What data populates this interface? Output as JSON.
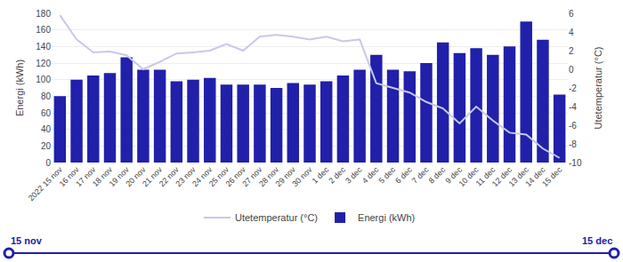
{
  "chart_data": {
    "type": "bar",
    "categories": [
      "2022 15 nov",
      "16 nov",
      "17 nov",
      "18 nov",
      "19 nov",
      "20 nov",
      "21 nov",
      "22 nov",
      "23 nov",
      "24 nov",
      "25 nov",
      "26 nov",
      "27 nov",
      "28 nov",
      "29 nov",
      "30 nov",
      "1 dec",
      "2 dec",
      "3 dec",
      "4 dec",
      "5 dec",
      "6 dec",
      "7 dec",
      "8 dec",
      "9 dec",
      "10 dec",
      "11 dec",
      "12 dec",
      "13 dec",
      "14 dec",
      "15 dec"
    ],
    "series": [
      {
        "name": "Energi (kWh)",
        "type": "bar",
        "color": "#2020aa",
        "values": [
          80,
          100,
          105,
          108,
          127,
          112,
          112,
          98,
          100,
          102,
          94,
          94,
          94,
          90,
          96,
          94,
          98,
          105,
          112,
          130,
          112,
          110,
          120,
          145,
          132,
          138,
          130,
          140,
          170,
          148,
          82
        ]
      },
      {
        "name": "Utetemperatur (°C)",
        "type": "line",
        "color": "#c8c8e8",
        "axis": "y2",
        "values": [
          5.8,
          3.2,
          1.8,
          1.9,
          1.5,
          0.0,
          0.8,
          1.7,
          1.8,
          2.0,
          2.7,
          2.0,
          3.5,
          3.7,
          3.5,
          3.2,
          3.5,
          3.0,
          3.2,
          -1.5,
          -2.0,
          -2.5,
          -3.5,
          -4.2,
          -5.8,
          -4.0,
          -5.5,
          -6.8,
          -7.0,
          -8.5,
          -9.5
        ]
      }
    ],
    "ylabel": "Energi (kWh)",
    "y2label": "Utetemperatur (°C)",
    "ylim": [
      0,
      180
    ],
    "yticks": [
      0,
      20,
      40,
      60,
      80,
      100,
      120,
      140,
      160,
      180
    ],
    "y2lim": [
      -10,
      6
    ],
    "y2ticks": [
      -10,
      -8,
      -6,
      -4,
      -2,
      0,
      2,
      4,
      6
    ],
    "grid": true,
    "legend": "bottom",
    "annotations": [
      "15 nov",
      "15 dec"
    ]
  }
}
